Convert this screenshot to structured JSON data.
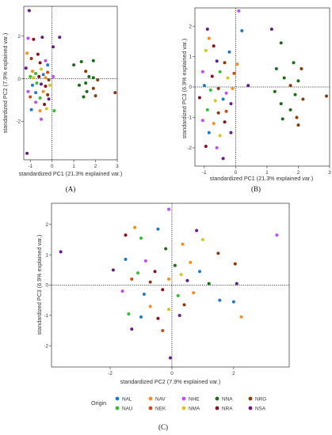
{
  "chart_data": [
    {
      "panel": "(A)",
      "type": "scatter",
      "xlabel": "standardized PC1 (21.3% explained var.)",
      "ylabel": "standardized PC2 (7.9% explained var.)",
      "xlim": [
        -1.3,
        3.0
      ],
      "ylim": [
        -3.8,
        3.4
      ],
      "xticks": [
        -1,
        0,
        1,
        2,
        3
      ],
      "yticks": [
        -2,
        0,
        2
      ],
      "reference_lines": {
        "x": 0,
        "y": 0,
        "style": "dotted"
      },
      "points": [
        {
          "g": "NSA",
          "x": -1.05,
          "y": 3.2
        },
        {
          "g": "NHE",
          "x": -1.1,
          "y": 1.9
        },
        {
          "g": "NRA",
          "x": -0.85,
          "y": 1.85
        },
        {
          "g": "NSA",
          "x": -0.45,
          "y": 1.95
        },
        {
          "g": "NSA",
          "x": 0.35,
          "y": 1.95
        },
        {
          "g": "NSA",
          "x": 0.05,
          "y": 1.5
        },
        {
          "g": "NAV",
          "x": -1.15,
          "y": 1.2
        },
        {
          "g": "NRA",
          "x": -0.65,
          "y": 1.15
        },
        {
          "g": "NRG",
          "x": -0.95,
          "y": 0.95
        },
        {
          "g": "NHE",
          "x": -0.3,
          "y": 0.85
        },
        {
          "g": "NRA",
          "x": -0.55,
          "y": 0.75
        },
        {
          "g": "NAL",
          "x": -0.2,
          "y": 0.65
        },
        {
          "g": "NSA",
          "x": -1.2,
          "y": 0.5
        },
        {
          "g": "NAV",
          "x": -0.9,
          "y": 0.35
        },
        {
          "g": "NAU",
          "x": -0.75,
          "y": 0.25
        },
        {
          "g": "NMA",
          "x": -0.5,
          "y": 0.45
        },
        {
          "g": "NAL",
          "x": -0.4,
          "y": 0.2
        },
        {
          "g": "NEK",
          "x": -0.2,
          "y": 0.3
        },
        {
          "g": "NAU",
          "x": -1.0,
          "y": 0.1
        },
        {
          "g": "NMA",
          "x": -0.85,
          "y": 0.05
        },
        {
          "g": "NRA",
          "x": -0.6,
          "y": 0.1
        },
        {
          "g": "NAV",
          "x": -0.3,
          "y": 0.05
        },
        {
          "g": "NRG",
          "x": -0.15,
          "y": -0.05
        },
        {
          "g": "NHE",
          "x": 0.05,
          "y": 0.1
        },
        {
          "g": "NAU",
          "x": -0.7,
          "y": -0.2
        },
        {
          "g": "NAL",
          "x": -0.9,
          "y": -0.3
        },
        {
          "g": "NSA",
          "x": -0.5,
          "y": -0.25
        },
        {
          "g": "NRA",
          "x": -0.3,
          "y": -0.35
        },
        {
          "g": "NMA",
          "x": -0.1,
          "y": -0.3
        },
        {
          "g": "NHE",
          "x": -1.1,
          "y": -0.6
        },
        {
          "g": "NAL",
          "x": -0.75,
          "y": -0.65
        },
        {
          "g": "NAV",
          "x": -0.4,
          "y": -0.6
        },
        {
          "g": "NRG",
          "x": -0.2,
          "y": -0.75
        },
        {
          "g": "NEK",
          "x": -1.0,
          "y": -0.85
        },
        {
          "g": "NAU",
          "x": -0.55,
          "y": -0.9
        },
        {
          "g": "NSA",
          "x": -0.15,
          "y": -0.95
        },
        {
          "g": "NHE",
          "x": -0.75,
          "y": -1.1
        },
        {
          "g": "NRA",
          "x": -0.35,
          "y": -1.2
        },
        {
          "g": "NAL",
          "x": -0.95,
          "y": -1.45
        },
        {
          "g": "NAV",
          "x": -0.55,
          "y": -1.5
        },
        {
          "g": "NMA",
          "x": -0.25,
          "y": -1.4
        },
        {
          "g": "NAU",
          "x": 0.1,
          "y": -1.5
        },
        {
          "g": "NHE",
          "x": -0.5,
          "y": -1.9
        },
        {
          "g": "NSA",
          "x": -1.15,
          "y": -3.5
        },
        {
          "g": "NNA",
          "x": 1.0,
          "y": 0.65
        },
        {
          "g": "NNA",
          "x": 1.35,
          "y": 0.8
        },
        {
          "g": "NNA",
          "x": 1.9,
          "y": 0.85
        },
        {
          "g": "NRG",
          "x": 1.55,
          "y": 0.35
        },
        {
          "g": "NNA",
          "x": 1.7,
          "y": 0.1
        },
        {
          "g": "NNA",
          "x": 1.9,
          "y": 0.05
        },
        {
          "g": "NRG",
          "x": 2.1,
          "y": -0.05
        },
        {
          "g": "NNA",
          "x": 1.55,
          "y": -0.2
        },
        {
          "g": "NNA",
          "x": 1.25,
          "y": -0.3
        },
        {
          "g": "NRG",
          "x": 1.9,
          "y": -0.45
        },
        {
          "g": "NNA",
          "x": 1.6,
          "y": -0.6
        },
        {
          "g": "NRG",
          "x": 2.0,
          "y": -0.8
        },
        {
          "g": "NNA",
          "x": 1.45,
          "y": -0.85
        },
        {
          "g": "NRG",
          "x": 2.9,
          "y": -0.65
        }
      ]
    },
    {
      "panel": "(B)",
      "type": "scatter",
      "xlabel": "standardized PC1 (21.3% explained var.)",
      "ylabel": "standardized PC3 (6.9% explained var.)",
      "xlim": [
        -1.3,
        3.0
      ],
      "ylim": [
        -2.6,
        2.6
      ],
      "xticks": [
        -1,
        0,
        1,
        2,
        3
      ],
      "yticks": [
        -2,
        -1,
        0,
        1,
        2
      ],
      "reference_lines": {
        "x": 0,
        "y": 0,
        "style": "dotted"
      },
      "points": [
        {
          "g": "NHE",
          "x": 0.1,
          "y": 2.5
        },
        {
          "g": "NSA",
          "x": -0.9,
          "y": 1.9
        },
        {
          "g": "NAV",
          "x": -0.85,
          "y": 1.6
        },
        {
          "g": "NAL",
          "x": 0.2,
          "y": 1.85
        },
        {
          "g": "NSA",
          "x": 1.15,
          "y": 1.9
        },
        {
          "g": "NRA",
          "x": -0.7,
          "y": 1.35
        },
        {
          "g": "NMA",
          "x": -0.95,
          "y": 1.2
        },
        {
          "g": "NAL",
          "x": -0.2,
          "y": 1.15
        },
        {
          "g": "NNA",
          "x": 1.45,
          "y": 1.45
        },
        {
          "g": "NSA",
          "x": -0.6,
          "y": 0.85
        },
        {
          "g": "NRG",
          "x": -0.35,
          "y": 0.8
        },
        {
          "g": "NAV",
          "x": 0.05,
          "y": 0.75
        },
        {
          "g": "NHE",
          "x": -1.05,
          "y": 0.5
        },
        {
          "g": "NRA",
          "x": -0.75,
          "y": 0.35
        },
        {
          "g": "NAU",
          "x": -0.5,
          "y": 0.5
        },
        {
          "g": "NMA",
          "x": -0.25,
          "y": 0.3
        },
        {
          "g": "NEK",
          "x": -0.05,
          "y": 0.45
        },
        {
          "g": "NSA",
          "x": 0.4,
          "y": 0.05
        },
        {
          "g": "NAL",
          "x": -1.0,
          "y": 0.05
        },
        {
          "g": "NAU",
          "x": -0.8,
          "y": -0.1
        },
        {
          "g": "NRG",
          "x": -0.55,
          "y": -0.05
        },
        {
          "g": "NHE",
          "x": -0.3,
          "y": -0.2
        },
        {
          "g": "NAV",
          "x": -0.1,
          "y": -0.05
        },
        {
          "g": "NRA",
          "x": -1.15,
          "y": -0.35
        },
        {
          "g": "NMA",
          "x": -0.65,
          "y": -0.45
        },
        {
          "g": "NAL",
          "x": -0.4,
          "y": -0.4
        },
        {
          "g": "NSA",
          "x": -0.15,
          "y": -0.55
        },
        {
          "g": "NAU",
          "x": -0.9,
          "y": -0.75
        },
        {
          "g": "NRG",
          "x": -0.55,
          "y": -0.85
        },
        {
          "g": "NEK",
          "x": -0.3,
          "y": -0.8
        },
        {
          "g": "NHE",
          "x": -1.05,
          "y": -1.1
        },
        {
          "g": "NAV",
          "x": -0.7,
          "y": -1.2
        },
        {
          "g": "NRA",
          "x": -0.35,
          "y": -1.15
        },
        {
          "g": "NAL",
          "x": -0.85,
          "y": -1.5
        },
        {
          "g": "NMA",
          "x": -0.5,
          "y": -1.6
        },
        {
          "g": "NSA",
          "x": -0.15,
          "y": -1.5
        },
        {
          "g": "NRA",
          "x": -0.95,
          "y": -1.95
        },
        {
          "g": "NHE",
          "x": -0.6,
          "y": -2.0
        },
        {
          "g": "NSA",
          "x": -0.4,
          "y": -2.35
        },
        {
          "g": "NNA",
          "x": 1.3,
          "y": 0.6
        },
        {
          "g": "NNA",
          "x": 1.85,
          "y": 0.8
        },
        {
          "g": "NRG",
          "x": 2.1,
          "y": 0.6
        },
        {
          "g": "NNA",
          "x": 1.55,
          "y": 0.3
        },
        {
          "g": "NNA",
          "x": 2.0,
          "y": 0.2
        },
        {
          "g": "NRG",
          "x": 1.75,
          "y": 0.05
        },
        {
          "g": "NNA",
          "x": 1.25,
          "y": -0.15
        },
        {
          "g": "NNA",
          "x": 1.9,
          "y": -0.25
        },
        {
          "g": "NRG",
          "x": 2.15,
          "y": -0.4
        },
        {
          "g": "NNA",
          "x": 1.45,
          "y": -0.55
        },
        {
          "g": "NNA",
          "x": 1.75,
          "y": -0.75
        },
        {
          "g": "NRG",
          "x": 1.95,
          "y": -1.0
        },
        {
          "g": "NNA",
          "x": 1.5,
          "y": -1.05
        },
        {
          "g": "NRG",
          "x": 2.0,
          "y": -1.25
        },
        {
          "g": "NRG",
          "x": 2.9,
          "y": -0.3
        }
      ]
    },
    {
      "panel": "(C)",
      "type": "scatter",
      "xlabel": "standardized PC2 (7.9% explained var.)",
      "ylabel": "standardized PC3 (6.9% explained var.)",
      "xlim": [
        -3.9,
        3.8
      ],
      "ylim": [
        -2.7,
        2.7
      ],
      "xticks": [
        -2,
        0,
        2
      ],
      "yticks": [
        -2,
        -1,
        0,
        1,
        2
      ],
      "reference_lines": {
        "x": 0,
        "y": 0,
        "style": "dotted"
      },
      "points": [
        {
          "g": "NHE",
          "x": -0.1,
          "y": 2.5
        },
        {
          "g": "NSA",
          "x": -3.6,
          "y": 1.1
        },
        {
          "g": "NHE",
          "x": 3.4,
          "y": 1.65
        },
        {
          "g": "NAV",
          "x": -1.2,
          "y": 1.9
        },
        {
          "g": "NAL",
          "x": -0.45,
          "y": 1.85
        },
        {
          "g": "NRA",
          "x": -1.5,
          "y": 1.65
        },
        {
          "g": "NAU",
          "x": -1.0,
          "y": 1.55
        },
        {
          "g": "NSA",
          "x": 0.8,
          "y": 1.8
        },
        {
          "g": "NMA",
          "x": 1.0,
          "y": 1.5
        },
        {
          "g": "NAV",
          "x": 0.35,
          "y": 1.35
        },
        {
          "g": "NNA",
          "x": -0.2,
          "y": 1.2
        },
        {
          "g": "NRG",
          "x": 1.5,
          "y": 1.05
        },
        {
          "g": "NAL",
          "x": -1.5,
          "y": 0.85
        },
        {
          "g": "NHE",
          "x": -0.85,
          "y": 0.8
        },
        {
          "g": "NAV",
          "x": 0.6,
          "y": 0.75
        },
        {
          "g": "NNA",
          "x": 0.1,
          "y": 0.65
        },
        {
          "g": "NSA",
          "x": -1.9,
          "y": 0.5
        },
        {
          "g": "NAU",
          "x": -1.1,
          "y": 0.4
        },
        {
          "g": "NRA",
          "x": -0.55,
          "y": 0.45
        },
        {
          "g": "NMA",
          "x": 0.3,
          "y": 0.35
        },
        {
          "g": "NAL",
          "x": 0.9,
          "y": 0.45
        },
        {
          "g": "NRG",
          "x": 2.05,
          "y": 0.7
        },
        {
          "g": "NEK",
          "x": -1.3,
          "y": 0.2
        },
        {
          "g": "NRG",
          "x": -0.7,
          "y": 0.1
        },
        {
          "g": "NAV",
          "x": -0.1,
          "y": 0.2
        },
        {
          "g": "NSA",
          "x": 0.5,
          "y": 0.15
        },
        {
          "g": "NNA",
          "x": 1.2,
          "y": 0.05
        },
        {
          "g": "NSA",
          "x": 2.1,
          "y": 0.05
        },
        {
          "g": "NHE",
          "x": -1.6,
          "y": -0.2
        },
        {
          "g": "NAL",
          "x": -0.9,
          "y": -0.3
        },
        {
          "g": "NRA",
          "x": -0.3,
          "y": -0.15
        },
        {
          "g": "NAU",
          "x": 0.2,
          "y": -0.35
        },
        {
          "g": "NAV",
          "x": 0.7,
          "y": -0.25
        },
        {
          "g": "NAL",
          "x": 1.55,
          "y": -0.5
        },
        {
          "g": "NAL",
          "x": 2.0,
          "y": -0.55
        },
        {
          "g": "NAU",
          "x": -1.4,
          "y": -0.95
        },
        {
          "g": "NAV",
          "x": -0.7,
          "y": -0.7
        },
        {
          "g": "NMA",
          "x": -0.1,
          "y": -0.8
        },
        {
          "g": "NRG",
          "x": 0.4,
          "y": -0.65
        },
        {
          "g": "NAL",
          "x": -1.0,
          "y": -1.05
        },
        {
          "g": "NRA",
          "x": -0.45,
          "y": -1.1
        },
        {
          "g": "NSA",
          "x": 0.25,
          "y": -1.0
        },
        {
          "g": "NAV",
          "x": 2.25,
          "y": -1.05
        },
        {
          "g": "NSA",
          "x": -1.3,
          "y": -1.45
        },
        {
          "g": "NEK",
          "x": -0.3,
          "y": -1.5
        },
        {
          "g": "NSA",
          "x": -0.05,
          "y": -2.4
        }
      ]
    }
  ],
  "legend": {
    "title": "Origin",
    "items": [
      {
        "label": "NAL",
        "color": "#1f78d1"
      },
      {
        "label": "NAV",
        "color": "#ff8c1a"
      },
      {
        "label": "NHE",
        "color": "#c04bff"
      },
      {
        "label": "NNA",
        "color": "#1a6e1a"
      },
      {
        "label": "NRG",
        "color": "#8b3a0a"
      },
      {
        "label": "NAU",
        "color": "#2ec42e"
      },
      {
        "label": "NEK",
        "color": "#d9460f"
      },
      {
        "label": "NMA",
        "color": "#d4c81a"
      },
      {
        "label": "NRA",
        "color": "#8a0f1f"
      },
      {
        "label": "NSA",
        "color": "#6a1a8a"
      }
    ]
  }
}
